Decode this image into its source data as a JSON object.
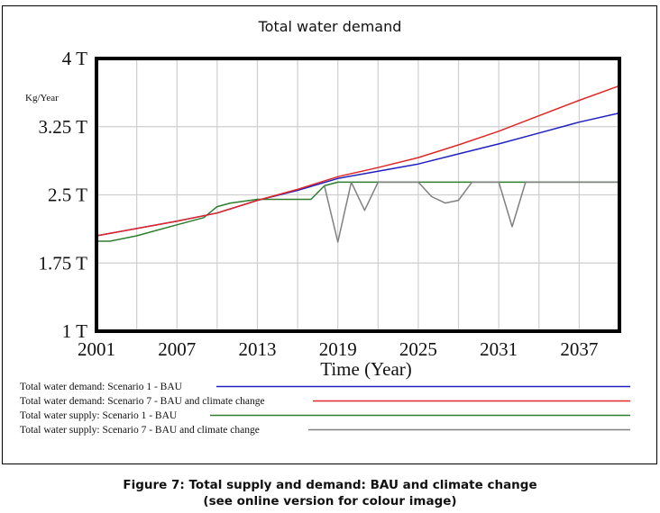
{
  "figure": {
    "caption_line1": "Figure 7: Total supply and demand: BAU and climate change",
    "caption_line2": "(see online version for colour image)"
  },
  "chart_data": {
    "type": "line",
    "title": "Total water demand",
    "xlabel": "Time (Year)",
    "ylabel": "Kg/Year",
    "xlim": [
      2001,
      2040
    ],
    "ylim": [
      1,
      4
    ],
    "x_ticks": [
      2001,
      2007,
      2013,
      2019,
      2025,
      2031,
      2037
    ],
    "x_tick_labels": [
      "2001",
      "2007",
      "2013",
      "2019",
      "2025",
      "2031",
      "2037"
    ],
    "x_gridlines": [
      2004,
      2007,
      2010,
      2013,
      2016,
      2019,
      2022,
      2025,
      2028,
      2031,
      2034,
      2037
    ],
    "y_ticks": [
      4,
      3.25,
      2.5,
      1.75,
      1
    ],
    "y_tick_labels": [
      "4 T",
      "3.25 T",
      "2.5 T",
      "1.75 T",
      "1 T"
    ],
    "grid": true,
    "legend_position": "bottom",
    "series": [
      {
        "name": "Total water demand: Scenario 1 - BAU",
        "color": "#2020c0",
        "x": [
          2001,
          2004,
          2007,
          2010,
          2013,
          2016,
          2019,
          2022,
          2025,
          2028,
          2031,
          2034,
          2037,
          2040
        ],
        "values": [
          2.05,
          2.13,
          2.21,
          2.3,
          2.44,
          2.55,
          2.68,
          2.76,
          2.84,
          2.95,
          3.06,
          3.18,
          3.3,
          3.4
        ]
      },
      {
        "name": "Total water demand: Scenario 7 - BAU and climate change",
        "color": "#e02828",
        "x": [
          2001,
          2004,
          2007,
          2010,
          2013,
          2016,
          2019,
          2022,
          2025,
          2028,
          2031,
          2034,
          2037,
          2040
        ],
        "values": [
          2.05,
          2.13,
          2.21,
          2.3,
          2.44,
          2.56,
          2.7,
          2.8,
          2.91,
          3.05,
          3.2,
          3.37,
          3.54,
          3.7
        ]
      },
      {
        "name": "Total water supply: Scenario 1 - BAU",
        "color": "#2e7d2e",
        "x": [
          2001,
          2002,
          2004,
          2007,
          2009,
          2010,
          2011,
          2013,
          2017,
          2018,
          2019,
          2040
        ],
        "values": [
          1.99,
          1.99,
          2.05,
          2.17,
          2.25,
          2.37,
          2.41,
          2.45,
          2.45,
          2.6,
          2.64,
          2.64
        ]
      },
      {
        "name": "Total water supply: Scenario 7 - BAU and climate change",
        "color": "#808080",
        "x": [
          2018,
          2019,
          2020,
          2021,
          2022,
          2025,
          2026,
          2027,
          2028,
          2029,
          2031,
          2032,
          2033,
          2040
        ],
        "values": [
          2.6,
          1.98,
          2.64,
          2.33,
          2.64,
          2.64,
          2.48,
          2.41,
          2.44,
          2.64,
          2.64,
          2.15,
          2.64,
          2.64
        ]
      }
    ]
  }
}
